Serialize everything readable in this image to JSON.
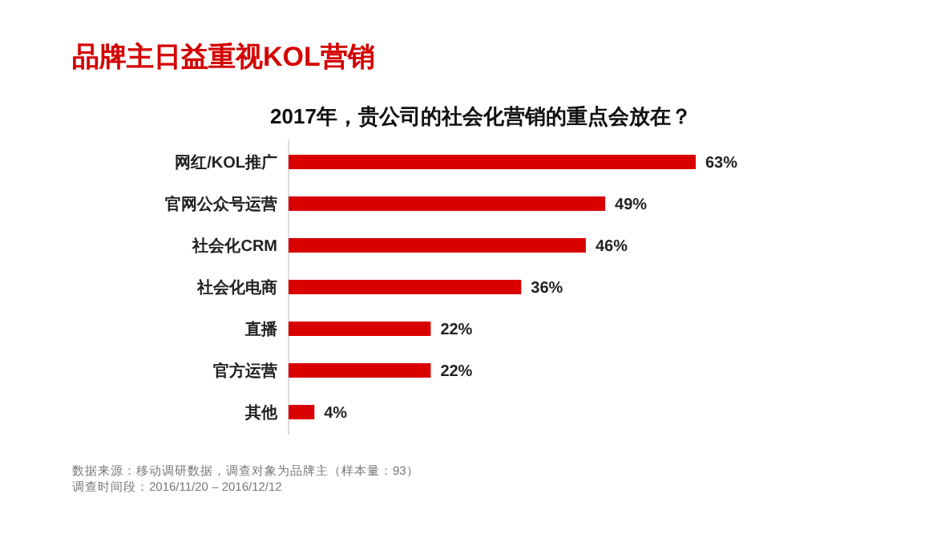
{
  "chart_data": {
    "type": "bar",
    "orientation": "horizontal",
    "title": "品牌主日益重视KOL营销",
    "subtitle": "2017年，贵公司的社会化营销的重点会放在？",
    "categories": [
      "网红/KOL推广",
      "官网公众号运营",
      "社会化CRM",
      "社会化电商",
      "直播",
      "官方运营",
      "其他"
    ],
    "values": [
      63,
      49,
      46,
      36,
      22,
      22,
      4
    ],
    "value_labels": [
      "63%",
      "49%",
      "46%",
      "36%",
      "22%",
      "22%",
      "4%"
    ],
    "color": "#d90000",
    "annotations": [
      "数据来源：移动调研数据，调查对象为品牌主（样本量：93）",
      "调查时间段：2016/11/20 – 2016/12/12"
    ]
  }
}
